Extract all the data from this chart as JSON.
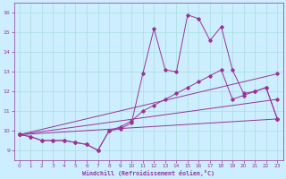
{
  "title": "",
  "xlabel": "Windchill (Refroidissement éolien,°C)",
  "ylabel": "",
  "bg_color": "#cceeff",
  "line_color": "#993399",
  "grid_color": "#aadddd",
  "xlim": [
    -0.5,
    23.5
  ],
  "ylim": [
    8.5,
    16.5
  ],
  "yticks": [
    9,
    10,
    11,
    12,
    13,
    14,
    15,
    16
  ],
  "xticks": [
    0,
    1,
    2,
    3,
    4,
    5,
    6,
    7,
    8,
    9,
    10,
    11,
    12,
    13,
    14,
    15,
    16,
    17,
    18,
    19,
    20,
    21,
    22,
    23
  ],
  "line1_x": [
    0,
    1,
    2,
    3,
    4,
    5,
    6,
    7,
    8,
    9,
    10,
    11,
    12,
    13,
    14,
    15,
    16,
    17,
    18,
    19,
    20,
    21,
    22,
    23
  ],
  "line1_y": [
    9.8,
    9.7,
    9.5,
    9.5,
    9.5,
    9.4,
    9.3,
    9.0,
    10.0,
    10.1,
    10.4,
    12.9,
    15.2,
    13.1,
    13.0,
    15.9,
    15.7,
    14.6,
    15.3,
    13.1,
    11.9,
    12.0,
    12.2,
    10.6
  ],
  "line2_x": [
    0,
    1,
    2,
    3,
    4,
    5,
    6,
    7,
    8,
    9,
    10,
    11,
    12,
    13,
    14,
    15,
    16,
    17,
    18,
    19,
    20,
    21,
    22,
    23
  ],
  "line2_y": [
    9.8,
    9.7,
    9.5,
    9.5,
    9.5,
    9.4,
    9.3,
    9.0,
    10.0,
    10.2,
    10.5,
    11.0,
    11.3,
    11.6,
    11.9,
    12.2,
    12.5,
    12.8,
    13.1,
    11.6,
    11.8,
    12.0,
    12.2,
    10.6
  ],
  "line3_x": [
    0,
    23
  ],
  "line3_y": [
    9.8,
    10.6
  ],
  "line4_x": [
    0,
    23
  ],
  "line4_y": [
    9.8,
    11.6
  ],
  "line5_x": [
    0,
    23
  ],
  "line5_y": [
    9.8,
    12.9
  ]
}
